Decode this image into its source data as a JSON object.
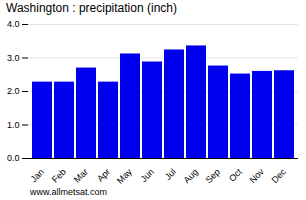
{
  "chart_data": {
    "type": "bar",
    "title": "Washington : precipitation (inch)",
    "categories": [
      "Jan",
      "Feb",
      "Mar",
      "Apr",
      "May",
      "Jun",
      "Jul",
      "Aug",
      "Sep",
      "Oct",
      "Nov",
      "Dec"
    ],
    "values": [
      2.28,
      2.28,
      2.7,
      2.28,
      3.12,
      2.88,
      3.24,
      3.36,
      2.76,
      2.52,
      2.6,
      2.62
    ],
    "color": "#0000ee",
    "ylim": [
      0,
      4
    ],
    "yticks": [
      0,
      1,
      2,
      3,
      4
    ],
    "grid": true,
    "annotation": "www.allmetsat.com"
  }
}
